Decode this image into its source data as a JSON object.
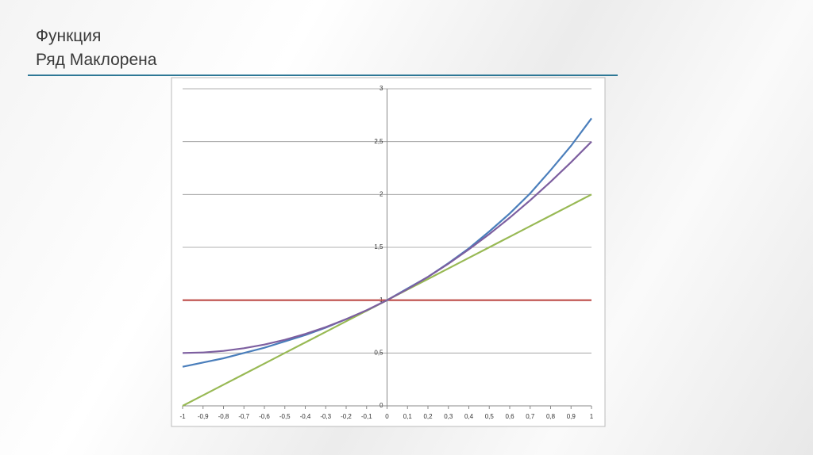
{
  "slide": {
    "title_lines": [
      "Функция",
      "Ряд Маклорена"
    ]
  },
  "chart_data": {
    "type": "line",
    "x": [
      -1,
      -0.9,
      -0.8,
      -0.7,
      -0.6,
      -0.5,
      -0.4,
      -0.3,
      -0.2,
      -0.1,
      0,
      0.1,
      0.2,
      0.3,
      0.4,
      0.5,
      0.6,
      0.7,
      0.8,
      0.9,
      1
    ],
    "series": [
      {
        "color": "#4a7ebb",
        "values": [
          0.37,
          0.41,
          0.45,
          0.5,
          0.55,
          0.61,
          0.67,
          0.74,
          0.82,
          0.9,
          1,
          1.11,
          1.22,
          1.35,
          1.49,
          1.65,
          1.82,
          2.01,
          2.23,
          2.46,
          2.72
        ]
      },
      {
        "color": "#be4b48",
        "values": [
          1,
          1,
          1,
          1,
          1,
          1,
          1,
          1,
          1,
          1,
          1,
          1,
          1,
          1,
          1,
          1,
          1,
          1,
          1,
          1,
          1
        ]
      },
      {
        "color": "#98b954",
        "values": [
          0,
          0.1,
          0.2,
          0.3,
          0.4,
          0.5,
          0.6,
          0.7,
          0.8,
          0.9,
          1,
          1.1,
          1.2,
          1.3,
          1.4,
          1.5,
          1.6,
          1.7,
          1.8,
          1.9,
          2
        ]
      },
      {
        "color": "#7d5fa0",
        "values": [
          0.5,
          0.505,
          0.52,
          0.545,
          0.58,
          0.625,
          0.68,
          0.745,
          0.82,
          0.905,
          1,
          1.105,
          1.22,
          1.345,
          1.48,
          1.625,
          1.78,
          1.945,
          2.12,
          2.305,
          2.5
        ]
      }
    ],
    "xlim": [
      -1,
      1
    ],
    "xticks": [
      -1,
      {
        "value": -0.9,
        "label": "-0,9"
      },
      {
        "value": -0.8,
        "label": "-0,8"
      },
      {
        "value": -0.7,
        "label": "-0,7"
      },
      {
        "value": -0.6,
        "label": "-0,6"
      },
      {
        "value": -0.5,
        "label": "-0,5"
      },
      {
        "value": -0.4,
        "label": "-0,4"
      },
      {
        "value": -0.3,
        "label": "-0,3"
      },
      {
        "value": -0.2,
        "label": "-0,2"
      },
      {
        "value": -0.1,
        "label": "-0,1"
      },
      0,
      {
        "value": 0.1,
        "label": "0,1"
      },
      {
        "value": 0.2,
        "label": "0,2"
      },
      {
        "value": 0.3,
        "label": "0,3"
      },
      {
        "value": 0.4,
        "label": "0,4"
      },
      {
        "value": 0.5,
        "label": "0,5"
      },
      {
        "value": 0.6,
        "label": "0,6"
      },
      {
        "value": 0.7,
        "label": "0,7"
      },
      {
        "value": 0.8,
        "label": "0,8"
      },
      {
        "value": 0.9,
        "label": "0,9"
      },
      1
    ],
    "ylim": [
      0,
      3
    ],
    "yticks": [
      0,
      {
        "value": 0.5,
        "label": "0,5"
      },
      1,
      {
        "value": 1.5,
        "label": "1,5"
      },
      2,
      {
        "value": 2.5,
        "label": "2,5"
      },
      3
    ],
    "grid": true
  }
}
